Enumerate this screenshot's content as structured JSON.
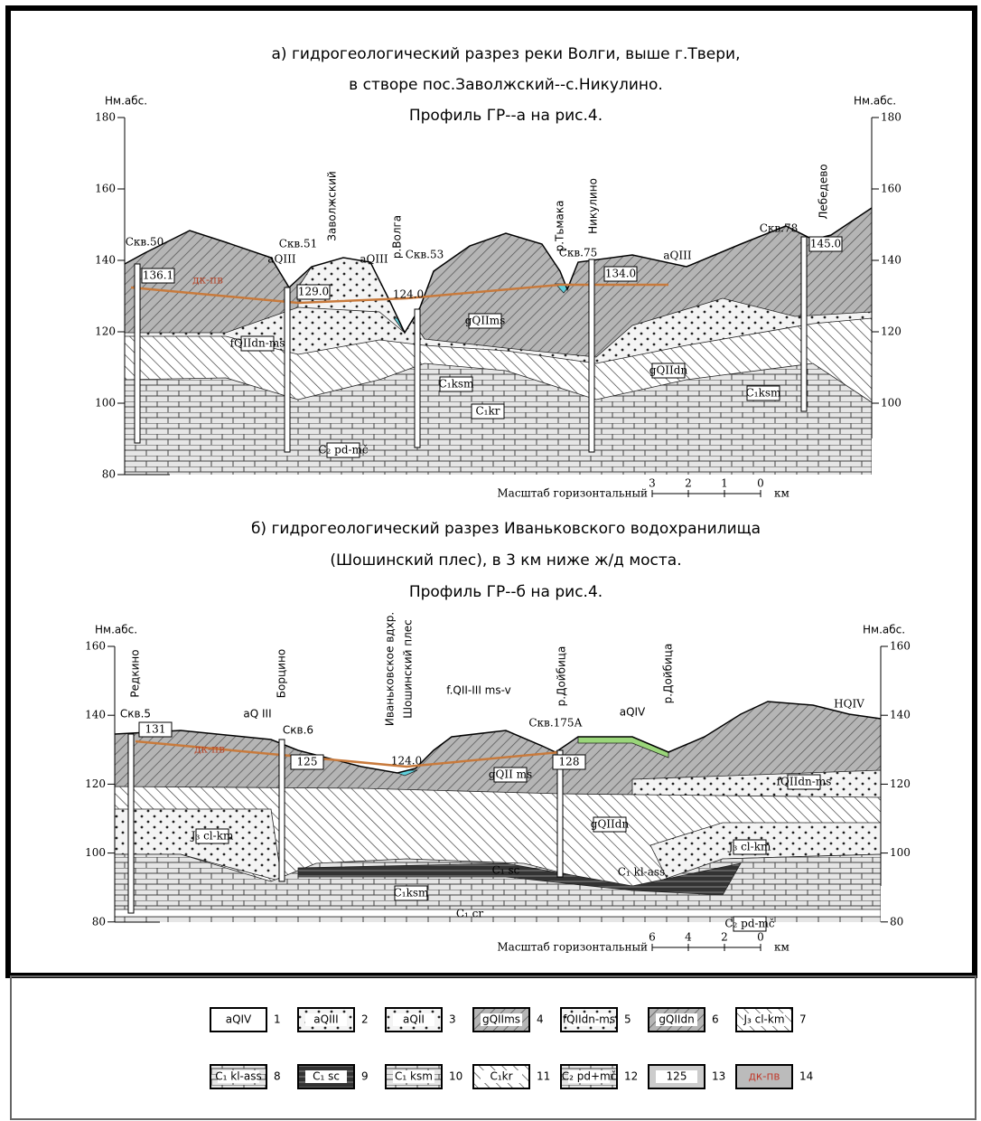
{
  "section_a": {
    "title_lines": [
      "а) гидрогеологический  разрез реки Волги, выше г.Твери,",
      "в  створе пос.Заволжский--с.Никулино.",
      "Профиль  ГР--а  на  рис.4."
    ],
    "axis_label_left": "Нм.абс.",
    "axis_label_right": "Нм.абс.",
    "left_ticks": [
      "180",
      "160",
      "140",
      "120",
      "100",
      "80"
    ],
    "right_ticks": [
      "180",
      "160",
      "140",
      "120",
      "100"
    ],
    "labels": [
      "Скв.50",
      "Скв.51",
      "Скв.53",
      "Скв.75",
      "Скв.78",
      "Заволжский",
      "р.Волга",
      "р.Тьмака",
      "Никулино",
      "Лебедево",
      "aQIII",
      "aQIII",
      "aQIII",
      "136.1",
      "129.0",
      "124.0",
      "134.0",
      "145.0",
      "дк-пв",
      "fQIIdn-ms",
      "gQIIms",
      "gQIIdn",
      "C₁ksm",
      "C₁kr",
      "C₂ pd-mč",
      "C₁ksm"
    ],
    "scale_label": "Масштаб горизонтальный",
    "scale_ticks": [
      "3",
      "2",
      "1",
      "0"
    ],
    "scale_unit": "км"
  },
  "section_b": {
    "title_lines": [
      "б) гидрогеологический   разрез  Иваньковского  водохранилища",
      "(Шошинский плес), в 3 км  ниже  ж/д  моста.",
      "Профиль ГР--б  на рис.4."
    ],
    "axis_label_left": "Нм.абс.",
    "axis_label_right": "Нм.абс.",
    "left_ticks": [
      "160",
      "140",
      "120",
      "100",
      "80"
    ],
    "right_ticks": [
      "160",
      "140",
      "120",
      "100",
      "80"
    ],
    "labels": [
      "Редкино",
      "Скв.5",
      "131",
      "Борцино",
      "aQ III",
      "Скв.6",
      "125",
      "Иваньковское вдхр.",
      "Шошинский плес",
      "124.0",
      "f.QII-III ms-v",
      "Скв.175А",
      "р.Дойбица",
      "128",
      "aQIV",
      "р.Дойбица",
      "HQIV",
      "дк-пв",
      "gQII ms",
      "fQIIdn-ms",
      "J₃ cl-km",
      "gQIIdn",
      "J₃ cl-km",
      "C₁ sc",
      "C₁ kl-ass",
      "C₁ksm",
      "C₁ cr",
      "C₂ pd-mč"
    ],
    "scale_label": "Масштаб горизонтальный",
    "scale_ticks": [
      "6",
      "4",
      "2",
      "0"
    ],
    "scale_unit": "км"
  },
  "legend": {
    "items": [
      {
        "code": "aQIV",
        "number": "1"
      },
      {
        "code": "aQIII",
        "number": "2"
      },
      {
        "code": "aQII",
        "number": "3"
      },
      {
        "code": "gQIIms",
        "number": "4"
      },
      {
        "code": "fQIIdn-ms",
        "number": "5"
      },
      {
        "code": "gQIIdn",
        "number": "6"
      },
      {
        "code": "J₃ cl-km",
        "number": "7"
      },
      {
        "code": "C₁ kl-ass",
        "number": "8"
      },
      {
        "code": "C₁ sc",
        "number": "9"
      },
      {
        "code": "C₁ ksm",
        "number": "10"
      },
      {
        "code": "C₁kr",
        "number": "11"
      },
      {
        "code": "C₂ pd+mč",
        "number": "12"
      },
      {
        "code": "125",
        "number": "13"
      },
      {
        "code": "дк-пв",
        "number": "14"
      }
    ]
  }
}
